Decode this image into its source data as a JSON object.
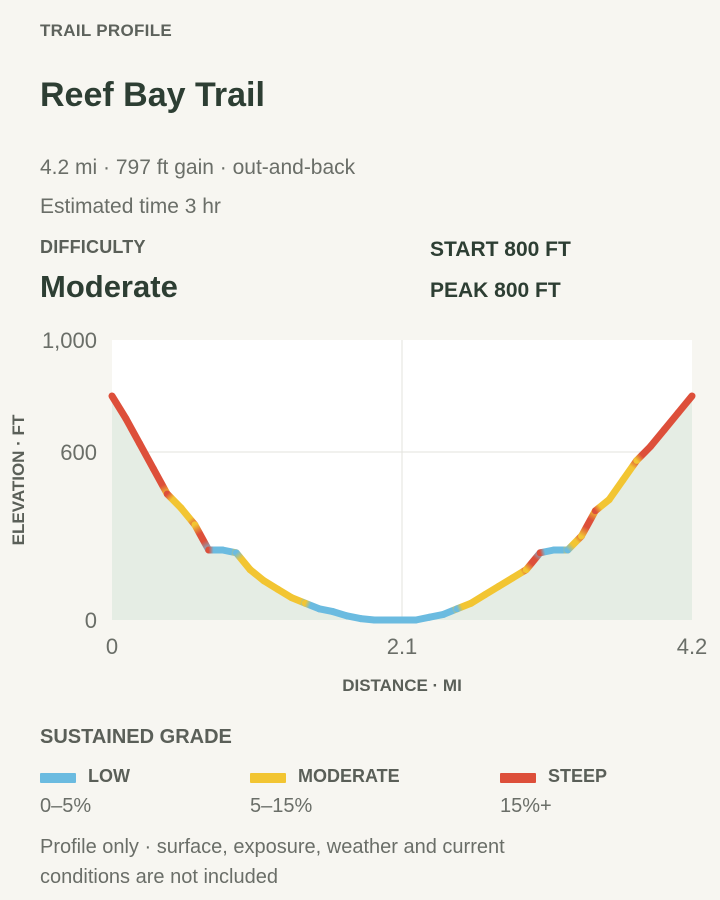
{
  "header": {
    "eyebrow": "TRAIL PROFILE",
    "title": "Reef Bay Trail",
    "stats": "4.2 mi · 797 ft gain · out-and-back",
    "time": "Estimated time 3 hr"
  },
  "difficulty": {
    "label": "DIFFICULTY",
    "value": "Moderate"
  },
  "summary": {
    "start": "START 800 FT",
    "peak": "PEAK 800 FT"
  },
  "legend": {
    "title": "SUSTAINED GRADE",
    "items": [
      {
        "name": "LOW",
        "range": "0–5%",
        "color": "#6bbbe0"
      },
      {
        "name": "MODERATE",
        "range": "5–15%",
        "color": "#f2c532"
      },
      {
        "name": "STEEP",
        "range": "15%+",
        "color": "#dd4f3a"
      }
    ]
  },
  "footnote": "Profile only · surface, exposure, weather and current conditions are not included",
  "chart_data": {
    "type": "line",
    "xlabel": "DISTANCE · MI",
    "ylabel": "ELEVATION · FT",
    "xlim": [
      0,
      4.2
    ],
    "ylim": [
      0,
      1000
    ],
    "xticks": [
      {
        "value": 0,
        "label": "0"
      },
      {
        "value": 2.1,
        "label": "2.1"
      },
      {
        "value": 4.2,
        "label": "4.2"
      }
    ],
    "yticks": [
      {
        "value": 0,
        "label": "0"
      },
      {
        "value": 600,
        "label": "600"
      },
      {
        "value": 1000,
        "label": "1,000"
      }
    ],
    "grid": true,
    "series": [
      {
        "x": [
          0,
          0.1,
          0.2,
          0.3,
          0.4,
          0.5,
          0.6,
          0.7,
          0.8,
          0.9,
          1.0,
          1.1,
          1.2,
          1.3,
          1.4,
          1.5,
          1.6,
          1.7,
          1.8,
          1.9,
          2.0,
          2.1,
          2.2,
          2.3,
          2.4,
          2.5,
          2.6,
          2.7,
          2.8,
          2.9,
          3.0,
          3.1,
          3.2,
          3.3,
          3.4,
          3.5,
          3.6,
          3.7,
          3.8,
          3.9,
          4.0,
          4.1,
          4.2
        ],
        "y": [
          800,
          720,
          630,
          540,
          450,
          400,
          340,
          250,
          250,
          240,
          180,
          140,
          110,
          80,
          60,
          40,
          30,
          15,
          5,
          0,
          0,
          0,
          0,
          10,
          20,
          40,
          60,
          90,
          120,
          150,
          180,
          240,
          250,
          250,
          300,
          390,
          430,
          500,
          570,
          620,
          680,
          740,
          800
        ],
        "grade": [
          "steep",
          "steep",
          "steep",
          "steep",
          "moderate",
          "moderate",
          "steep",
          "low",
          "low",
          "moderate",
          "moderate",
          "moderate",
          "moderate",
          "moderate",
          "low",
          "low",
          "low",
          "low",
          "low",
          "low",
          "low",
          "low",
          "low",
          "low",
          "low",
          "moderate",
          "moderate",
          "moderate",
          "moderate",
          "moderate",
          "steep",
          "low",
          "low",
          "moderate",
          "steep",
          "moderate",
          "moderate",
          "moderate",
          "steep",
          "steep",
          "steep",
          "steep"
        ]
      }
    ],
    "colors": {
      "low": "#6bbbe0",
      "moderate": "#f2c532",
      "steep": "#dd4f3a",
      "transition": "#9cbfa3",
      "fill": "#e5ede4",
      "plot_bg": "#ffffff",
      "grid": "#e3e3de"
    }
  }
}
